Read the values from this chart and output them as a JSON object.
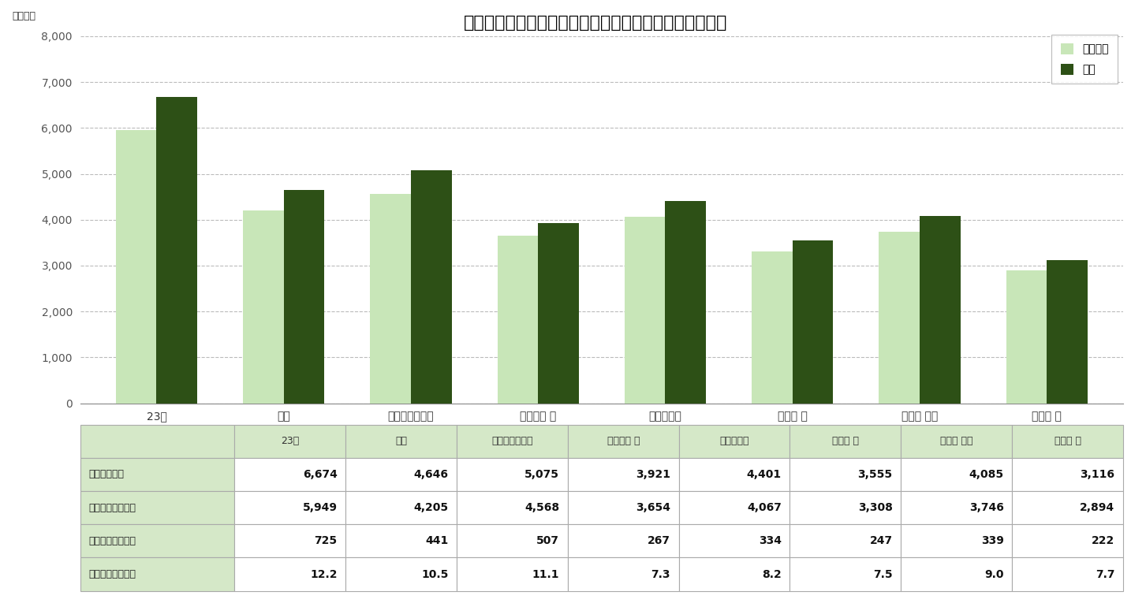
{
  "title": "＜図表１＞　首都圏８エリアの平均価格（前年同月比）",
  "ylabel_unit": "（万円）",
  "categories": [
    "23区",
    "都下",
    "横浜市・川崎市",
    "神奈川県 他",
    "さいたま市",
    "埼玉県 他",
    "千葉県 西部",
    "千葉県 他"
  ],
  "prev_year": [
    5949,
    4205,
    4568,
    3654,
    4067,
    3308,
    3746,
    2894
  ],
  "current": [
    6674,
    4646,
    5075,
    3921,
    4401,
    3555,
    4085,
    3116
  ],
  "diff": [
    725,
    441,
    507,
    267,
    334,
    247,
    339,
    222
  ],
  "pct": [
    "12.2",
    "10.5",
    "11.1",
    "7.3",
    "8.2",
    "7.5",
    "9.0",
    "7.7"
  ],
  "color_prev": "#c8e6b8",
  "color_curr": "#2d5016",
  "ylim": [
    0,
    8000
  ],
  "yticks": [
    0,
    1000,
    2000,
    3000,
    4000,
    5000,
    6000,
    7000,
    8000
  ],
  "legend_prev": "前年同月",
  "legend_curr": "当月",
  "table_header_bg": "#d5e8c8",
  "table_row_labels": [
    "当月（万円）",
    "前年同月（万円）",
    "前年差額（万円）",
    "前年同月比（％）"
  ],
  "bg_color": "#ffffff",
  "grid_color": "#bbbbbb"
}
